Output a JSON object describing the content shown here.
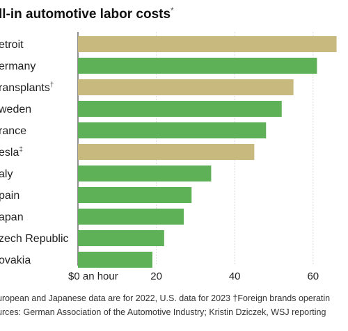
{
  "chart_data": {
    "type": "bar",
    "orientation": "horizontal",
    "title": "ll-in automotive labor costs",
    "title_mark": "*",
    "categories": [
      "etroit",
      "ermany",
      "ransplants",
      "weden",
      "rance",
      "esla",
      "aly",
      "pain",
      "apan",
      "zech Republic",
      "ovakia"
    ],
    "category_marks": [
      "",
      "",
      "†",
      "",
      "",
      "‡",
      "",
      "",
      "",
      "",
      ""
    ],
    "values": [
      66,
      61,
      55,
      52,
      48,
      45,
      34,
      29,
      27,
      22,
      19
    ],
    "bar_groups": [
      "us",
      "foreign",
      "us",
      "foreign",
      "foreign",
      "us",
      "foreign",
      "foreign",
      "foreign",
      "foreign",
      "foreign"
    ],
    "colors": {
      "us": "#c8b97f",
      "foreign": "#5fb157"
    },
    "xlim": [
      0,
      68
    ],
    "ticks": [
      0,
      20,
      40,
      60
    ],
    "tick_labels": [
      "$0 an hour",
      "20",
      "40",
      "60"
    ],
    "grid": true,
    "notes": [
      "uropean and Japanese data are for 2022, U.S. data for 2023   †Foreign brands operatin",
      "urces: German Association of the Automotive Industry; Kristin Dziczek, WSJ reporting"
    ]
  }
}
